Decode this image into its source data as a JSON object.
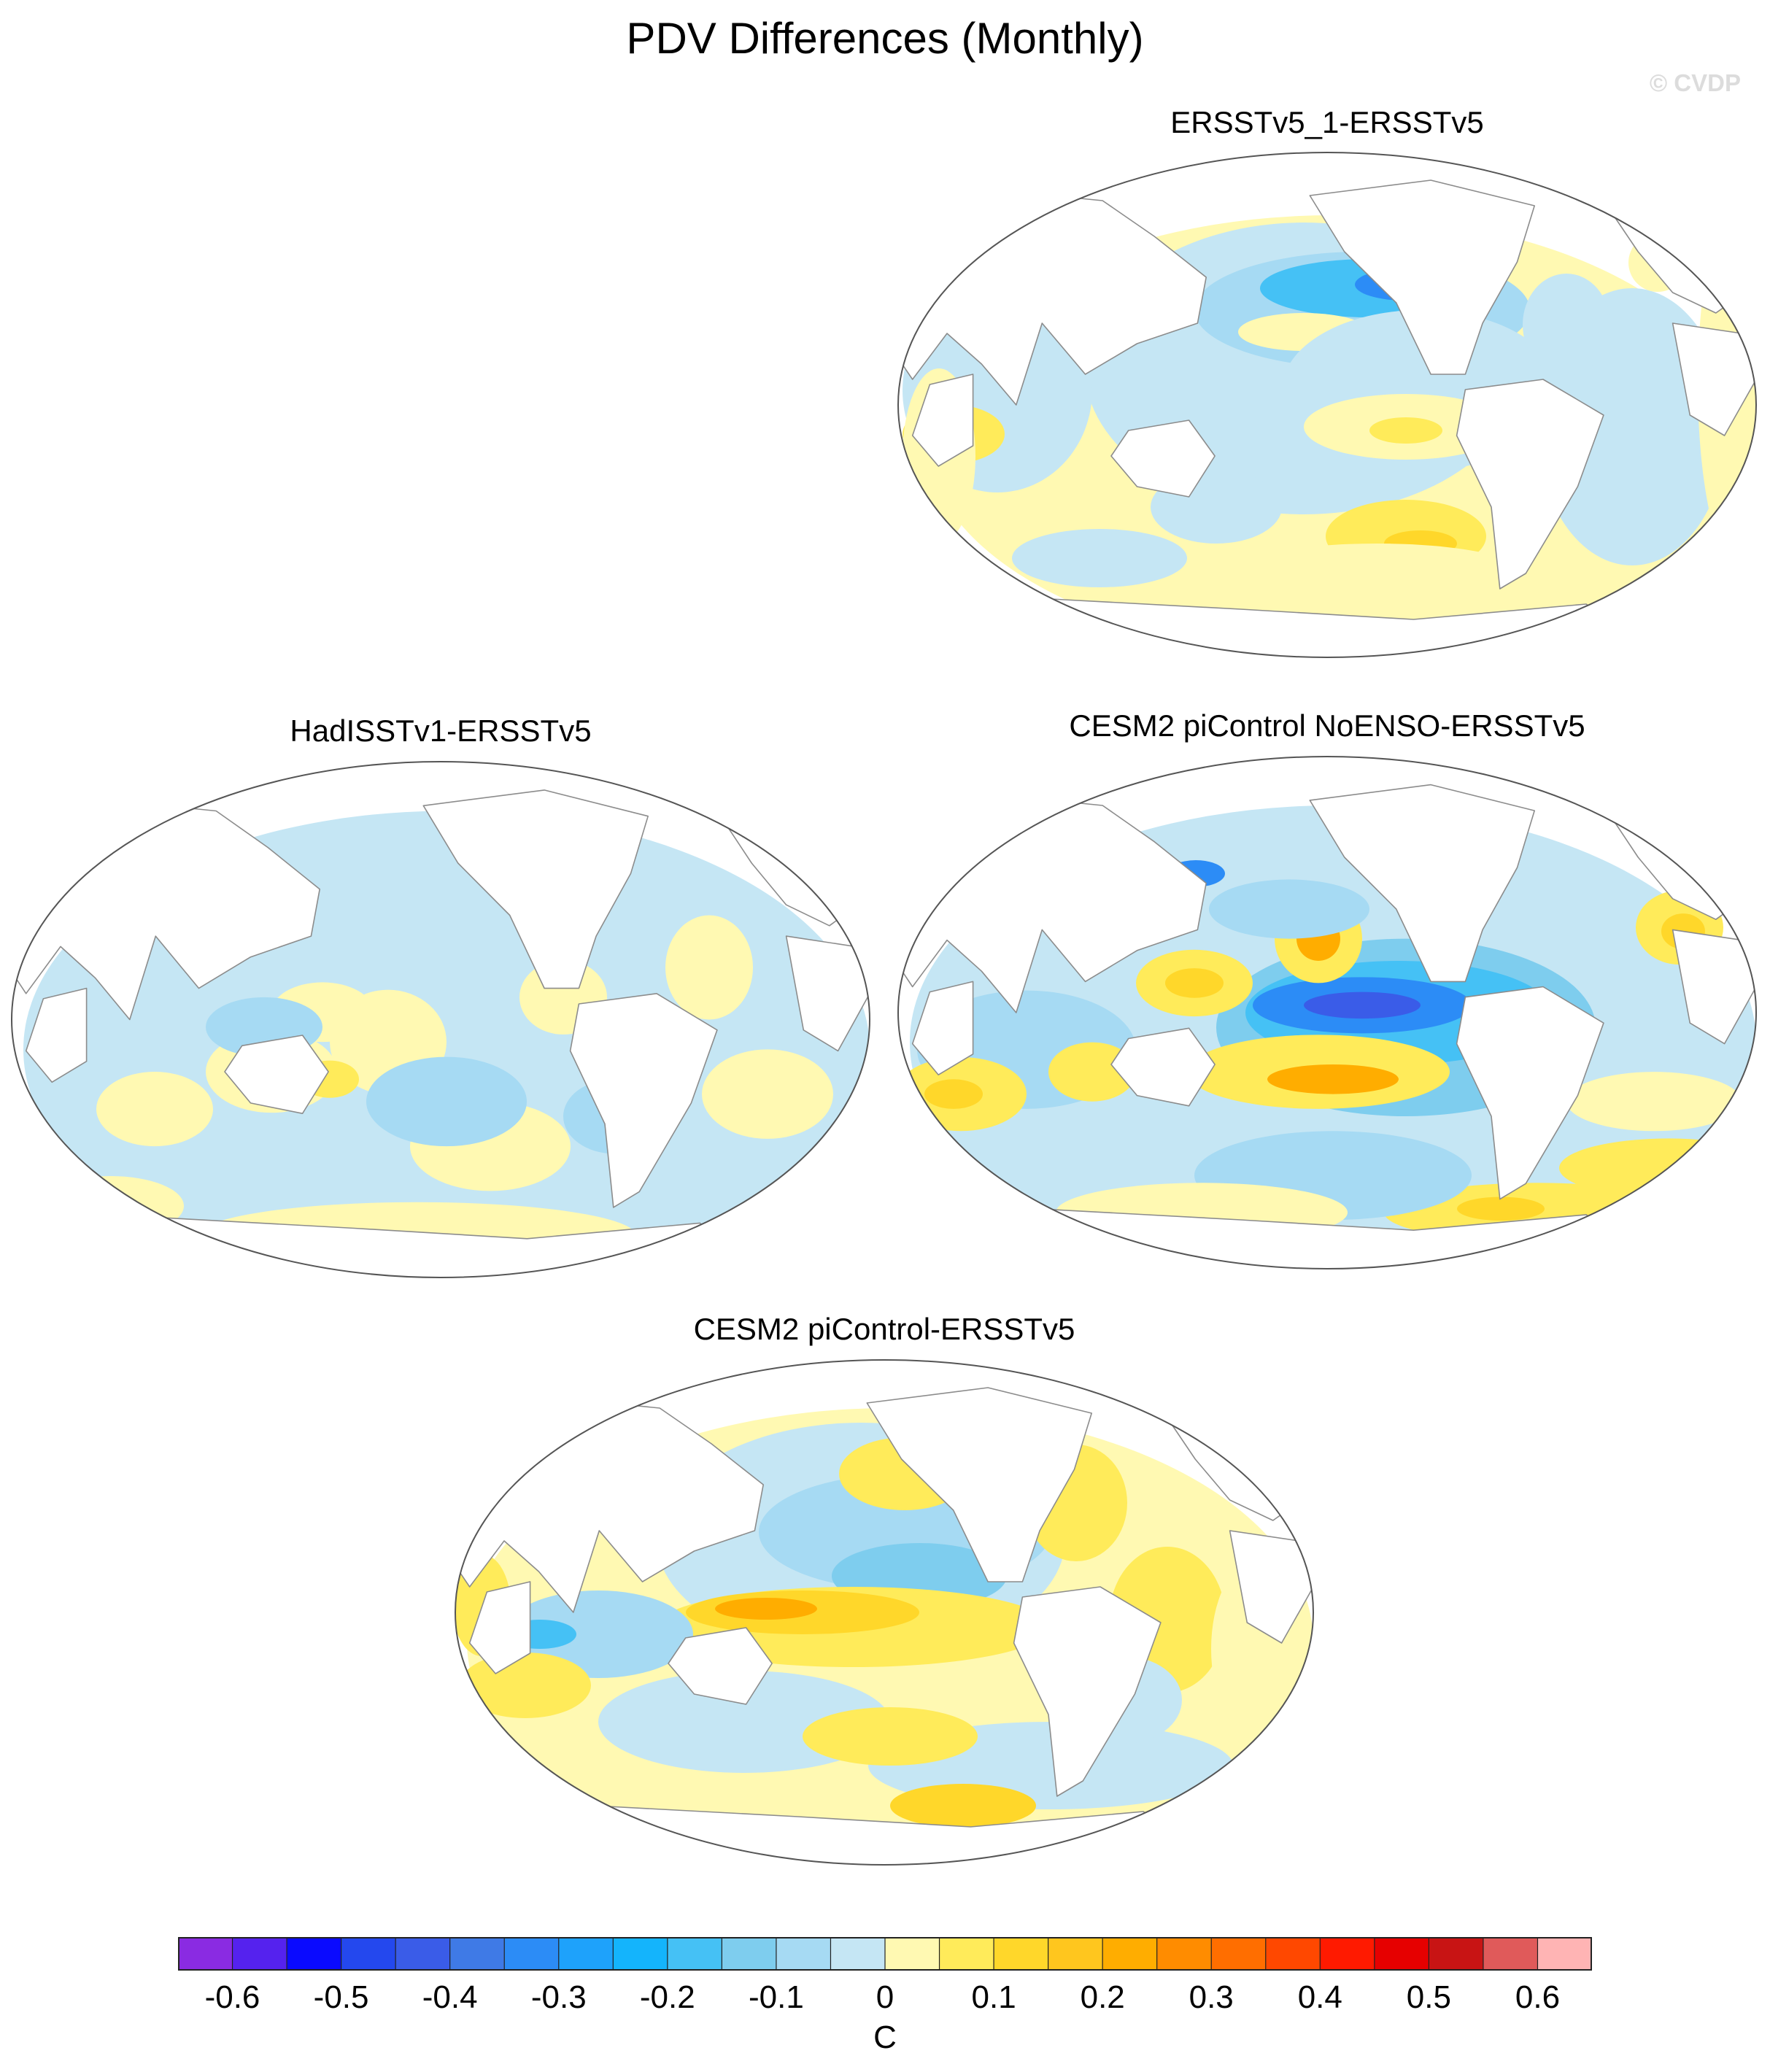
{
  "title": "PDV Differences (Monthly)",
  "credit": "© CVDP",
  "panels": [
    {
      "id": "p1",
      "title": "ERSSTv5_1-ERSSTv5"
    },
    {
      "id": "p2",
      "title": "HadISSTv1-ERSSTv5"
    },
    {
      "id": "p3",
      "title": "CESM2 piControl NoENSO-ERSSTv5"
    },
    {
      "id": "p4",
      "title": "CESM2 piControl-ERSSTv5"
    }
  ],
  "colorbar": {
    "unit": "C",
    "labels": [
      "-0.6",
      "-0.5",
      "-0.4",
      "-0.3",
      "-0.2",
      "-0.1",
      "0",
      "0.1",
      "0.2",
      "0.3",
      "0.4",
      "0.5",
      "0.6"
    ],
    "colors": [
      "#8a2be2",
      "#5522ee",
      "#0a0aff",
      "#2448ee",
      "#3a5ce8",
      "#3f7ae6",
      "#2c8cf6",
      "#1ea2fb",
      "#14b4fc",
      "#45c1f5",
      "#7ecdee",
      "#a6daf3",
      "#c5e6f4",
      "#fff9b2",
      "#ffeb5a",
      "#ffd72a",
      "#ffc61e",
      "#ffad00",
      "#ff8c00",
      "#ff6e00",
      "#ff4800",
      "#ff1a00",
      "#e60000",
      "#c81414",
      "#e05a5a",
      "#ffb4b4"
    ]
  },
  "map_colors": {
    "neg_weak": "#c5e6f4",
    "neg_mod": "#a6daf3",
    "neg_med": "#7ecdee",
    "neg_strong": "#45c1f5",
    "neg_deep": "#2c8cf6",
    "neg_core": "#3a5ce8",
    "neg_extreme": "#5522ee",
    "pos_weak": "#fff9b2",
    "pos_mod": "#ffeb5a",
    "pos_med": "#ffd72a",
    "pos_strong": "#ffad00",
    "pos_deep": "#ff8c00",
    "land": "#ffffff"
  }
}
